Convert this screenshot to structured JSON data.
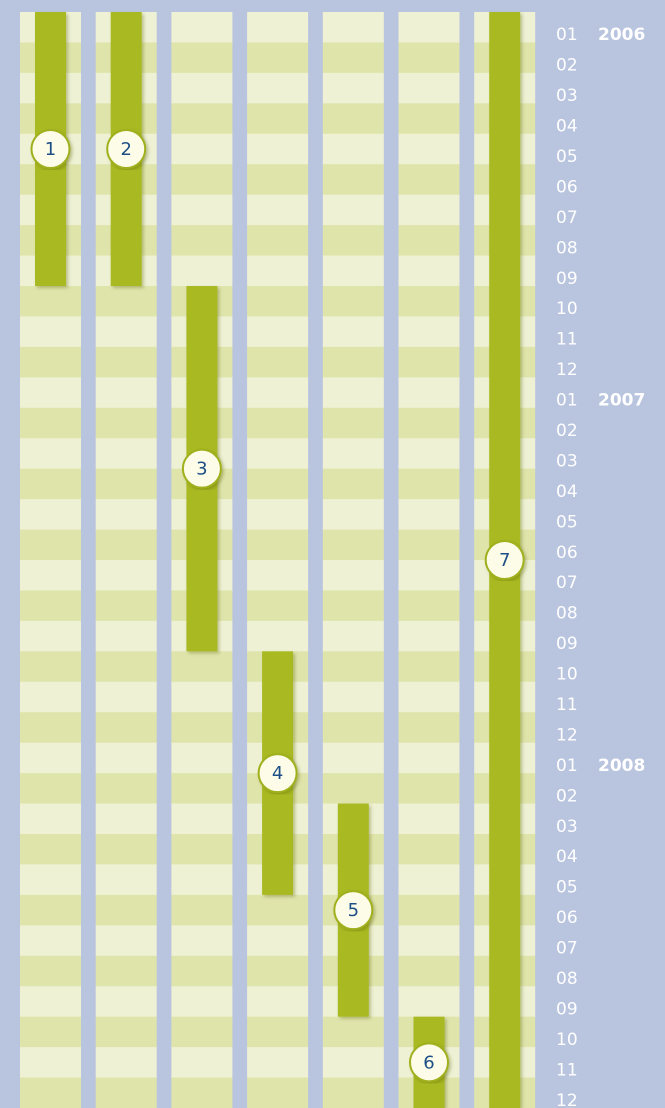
{
  "chart_data": {
    "type": "gantt",
    "years": [
      {
        "label": "2006",
        "months": [
          "01",
          "02",
          "03",
          "04",
          "05",
          "06",
          "07",
          "08",
          "09",
          "10",
          "11",
          "12"
        ]
      },
      {
        "label": "2007",
        "months": [
          "01",
          "02",
          "03",
          "04",
          "05",
          "06",
          "07",
          "08",
          "09",
          "10",
          "11",
          "12"
        ]
      },
      {
        "label": "2008",
        "months": [
          "01",
          "02",
          "03",
          "04",
          "05",
          "06",
          "07",
          "08",
          "09",
          "10",
          "11",
          "12"
        ]
      }
    ],
    "tasks": [
      {
        "label": "1",
        "start": "2006-01",
        "end": "2006-09"
      },
      {
        "label": "2",
        "start": "2006-01",
        "end": "2006-09"
      },
      {
        "label": "3",
        "start": "2006-10",
        "end": "2007-09"
      },
      {
        "label": "4",
        "start": "2007-10",
        "end": "2008-05"
      },
      {
        "label": "5",
        "start": "2008-03",
        "end": "2008-09"
      },
      {
        "label": "6",
        "start": "2008-10",
        "end": "2008-12"
      },
      {
        "label": "7",
        "start": "2006-01",
        "end": "2008-12"
      }
    ],
    "bar_color": "#a9b921"
  }
}
